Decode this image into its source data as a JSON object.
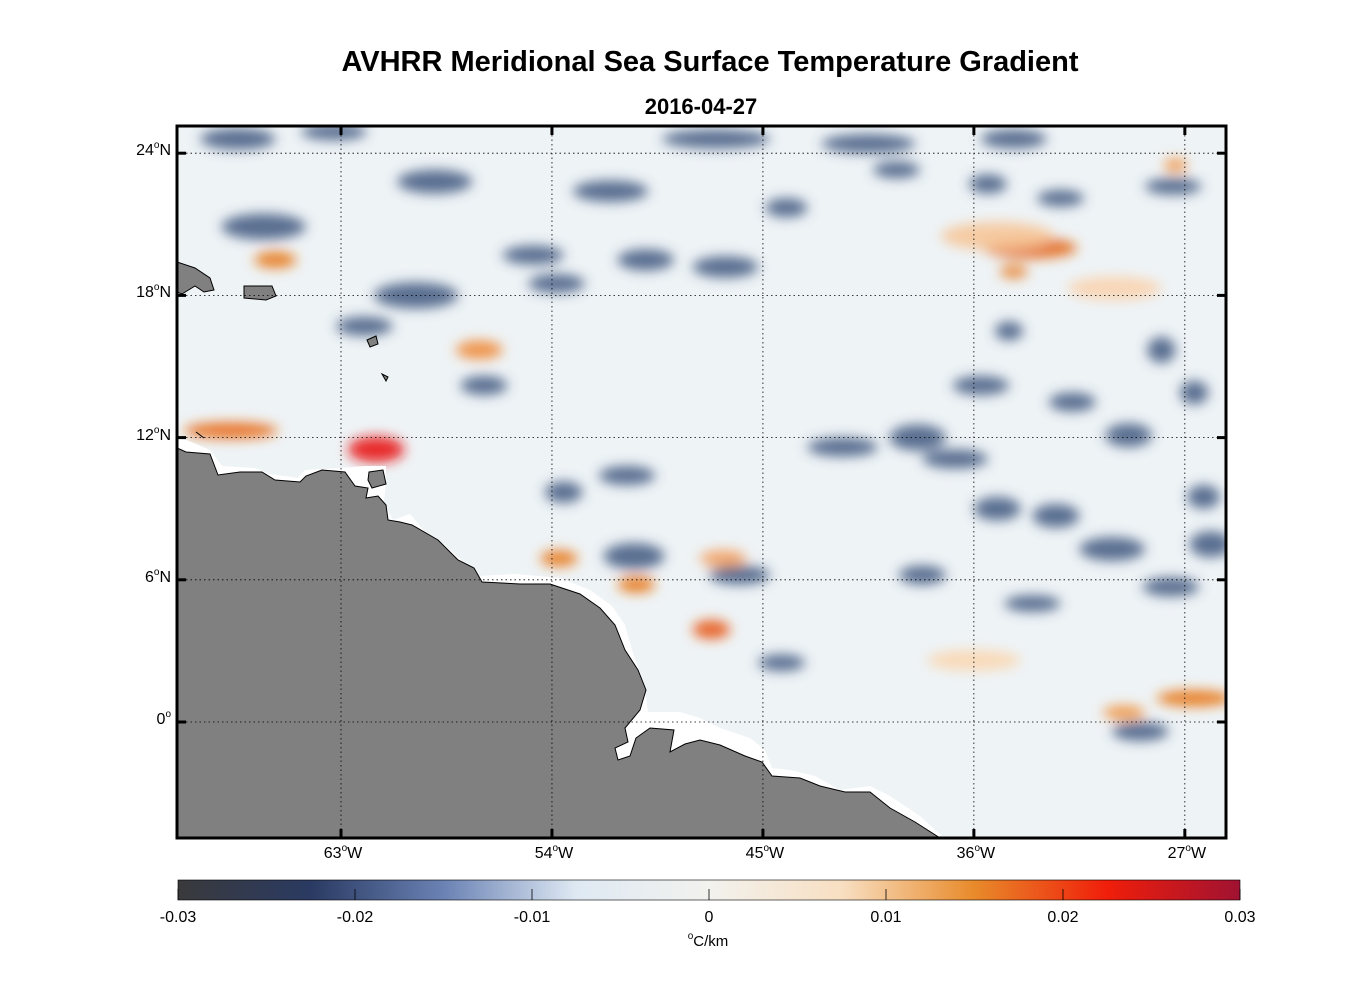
{
  "title": "AVHRR Meridional Sea Surface Temperature Gradient",
  "subtitle": "2016-04-27",
  "lat_ticks": [
    {
      "deg": "24",
      "suffix": "N",
      "value": 24
    },
    {
      "deg": "18",
      "suffix": "N",
      "value": 18
    },
    {
      "deg": "12",
      "suffix": "N",
      "value": 12
    },
    {
      "deg": "6",
      "suffix": "N",
      "value": 6
    },
    {
      "deg": "0",
      "suffix": "",
      "value": 0
    }
  ],
  "lon_ticks": [
    {
      "deg": "63",
      "suffix": "W",
      "value": -63
    },
    {
      "deg": "54",
      "suffix": "W",
      "value": -54
    },
    {
      "deg": "45",
      "suffix": "W",
      "value": -45
    },
    {
      "deg": "36",
      "suffix": "W",
      "value": -36
    },
    {
      "deg": "27",
      "suffix": "W",
      "value": -27
    }
  ],
  "colorbar": {
    "ticks": [
      "-0.03",
      "-0.02",
      "-0.01",
      "0",
      "0.01",
      "0.02",
      "0.03"
    ],
    "unit_symbol": "o",
    "unit_text": "C/km",
    "colors": [
      "#3a3a3c",
      "#2a3a62",
      "#6a82b4",
      "#dfe9f3",
      "#f2f2ee",
      "#f8dfc2",
      "#e88a2a",
      "#f01e0a",
      "#a01232"
    ]
  },
  "map": {
    "ocean_color": "#eef3f6",
    "land_color": "#808080",
    "lon_range": [
      -70,
      -25
    ],
    "lat_range": [
      -5,
      25
    ],
    "blue_patches": [
      [
        -67.4,
        24.6,
        1.6,
        0.45
      ],
      [
        -63.3,
        24.9,
        1.4,
        0.35
      ],
      [
        -47.0,
        24.6,
        2.3,
        0.4
      ],
      [
        -40.5,
        24.4,
        2.0,
        0.4
      ],
      [
        -34.3,
        24.6,
        1.4,
        0.4
      ],
      [
        -59.0,
        22.8,
        1.6,
        0.5
      ],
      [
        -51.5,
        22.4,
        1.6,
        0.45
      ],
      [
        -44.0,
        21.7,
        0.9,
        0.4
      ],
      [
        -39.3,
        23.3,
        1.0,
        0.35
      ],
      [
        -35.4,
        22.7,
        0.8,
        0.4
      ],
      [
        -32.3,
        22.1,
        1.0,
        0.35
      ],
      [
        -27.5,
        22.6,
        1.2,
        0.35
      ],
      [
        -66.3,
        20.9,
        1.8,
        0.55
      ],
      [
        -54.8,
        19.7,
        1.3,
        0.4
      ],
      [
        -50.0,
        19.5,
        1.2,
        0.45
      ],
      [
        -46.6,
        19.2,
        1.4,
        0.45
      ],
      [
        -59.8,
        18.0,
        1.8,
        0.55
      ],
      [
        -53.8,
        18.5,
        1.2,
        0.4
      ],
      [
        -62.0,
        16.7,
        1.2,
        0.4
      ],
      [
        -34.5,
        16.5,
        0.6,
        0.4
      ],
      [
        -28.0,
        15.7,
        0.6,
        0.55
      ],
      [
        -56.9,
        14.2,
        1.0,
        0.4
      ],
      [
        -35.7,
        14.2,
        1.2,
        0.4
      ],
      [
        -31.8,
        13.5,
        1.0,
        0.4
      ],
      [
        -26.6,
        13.9,
        0.6,
        0.5
      ],
      [
        -38.4,
        12.0,
        1.2,
        0.55
      ],
      [
        -29.4,
        12.1,
        1.0,
        0.5
      ],
      [
        -41.6,
        11.6,
        1.5,
        0.4
      ],
      [
        -36.8,
        11.1,
        1.4,
        0.4
      ],
      [
        -50.8,
        10.4,
        1.2,
        0.4
      ],
      [
        -53.5,
        9.7,
        0.8,
        0.45
      ],
      [
        -35.0,
        9.0,
        1.0,
        0.5
      ],
      [
        -32.5,
        8.7,
        1.0,
        0.5
      ],
      [
        -26.2,
        9.5,
        0.7,
        0.5
      ],
      [
        -30.1,
        7.3,
        1.4,
        0.5
      ],
      [
        -25.9,
        7.5,
        0.9,
        0.55
      ],
      [
        -27.6,
        5.7,
        1.2,
        0.4
      ],
      [
        -50.5,
        7.0,
        1.3,
        0.55
      ],
      [
        -46.0,
        6.2,
        1.3,
        0.4
      ],
      [
        -38.2,
        6.2,
        1.0,
        0.4
      ],
      [
        -33.5,
        5.0,
        1.2,
        0.35
      ],
      [
        -28.9,
        -0.4,
        1.2,
        0.4
      ],
      [
        -44.2,
        2.5,
        1.0,
        0.35
      ]
    ],
    "red_patches": [
      [
        -65.8,
        19.5,
        0.9,
        0.35,
        "#e8781a"
      ],
      [
        -57.1,
        15.7,
        1.0,
        0.4,
        "#ef8c3a"
      ],
      [
        -67.7,
        12.3,
        2.0,
        0.35,
        "#e86a14"
      ],
      [
        -61.5,
        11.5,
        1.2,
        0.55,
        "#e8141a"
      ],
      [
        -33.6,
        20.0,
        2.0,
        0.45,
        "#e46a14"
      ],
      [
        -34.3,
        19.0,
        0.6,
        0.3,
        "#e88a3a"
      ],
      [
        -27.4,
        23.5,
        0.5,
        0.3,
        "#f09a50"
      ],
      [
        -53.7,
        6.9,
        0.8,
        0.35,
        "#e87a1e"
      ],
      [
        -46.7,
        6.9,
        1.0,
        0.35,
        "#f2a060"
      ],
      [
        -50.4,
        5.8,
        0.8,
        0.35,
        "#e8781a"
      ],
      [
        -47.2,
        3.9,
        0.8,
        0.4,
        "#e85a14"
      ],
      [
        -26.6,
        1.0,
        1.6,
        0.35,
        "#e8781a"
      ],
      [
        -29.6,
        0.4,
        0.9,
        0.3,
        "#f09440"
      ],
      [
        -35.0,
        20.5,
        2.4,
        0.6,
        "#f6c69a"
      ],
      [
        -36.0,
        2.6,
        2.0,
        0.45,
        "#fad8b4"
      ],
      [
        -30.0,
        18.3,
        2.0,
        0.5,
        "#fad4b0"
      ]
    ]
  }
}
